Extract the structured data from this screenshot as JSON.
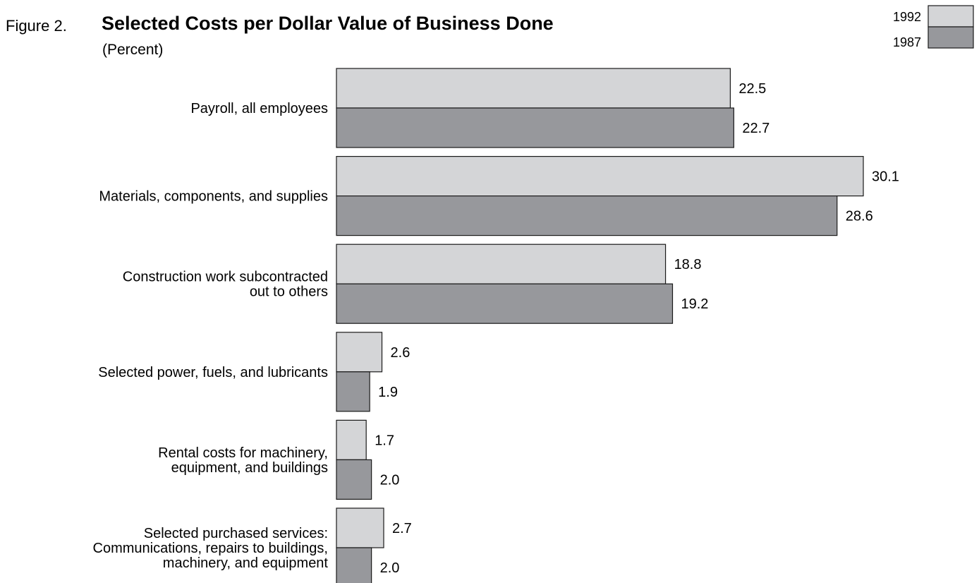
{
  "figure_label": "Figure 2.",
  "colors": {
    "series_1992": "#d4d5d7",
    "series_1987": "#97989c",
    "outline": "#1a1a1a"
  },
  "chart_data": {
    "type": "bar",
    "orientation": "horizontal",
    "title": "Selected Costs per Dollar Value of Business Done",
    "subtitle": "(Percent)",
    "categories": [
      [
        "Payroll, all employees"
      ],
      [
        "Materials, components, and supplies"
      ],
      [
        "Construction work subcontracted",
        "out to others"
      ],
      [
        "Selected power, fuels, and lubricants"
      ],
      [
        "Rental costs for machinery,",
        "equipment, and buildings"
      ],
      [
        "Selected purchased services:",
        "Communications, repairs to buildings,",
        "machinery, and equipment"
      ]
    ],
    "series": [
      {
        "name": "1992",
        "values": [
          22.5,
          30.1,
          18.8,
          2.6,
          1.7,
          2.7
        ],
        "labels": [
          "22.5",
          "30.1",
          "18.8",
          "2.6",
          "1.7",
          "2.7"
        ]
      },
      {
        "name": "1987",
        "values": [
          22.7,
          28.6,
          19.2,
          1.9,
          2.0,
          2.0
        ],
        "labels": [
          "22.7",
          "28.6",
          "19.2",
          "1.9",
          "2.0",
          "2.0"
        ]
      }
    ],
    "xlim": [
      0,
      30.1
    ],
    "grid": false,
    "axes_visible": false,
    "legend_position": "top-right"
  }
}
